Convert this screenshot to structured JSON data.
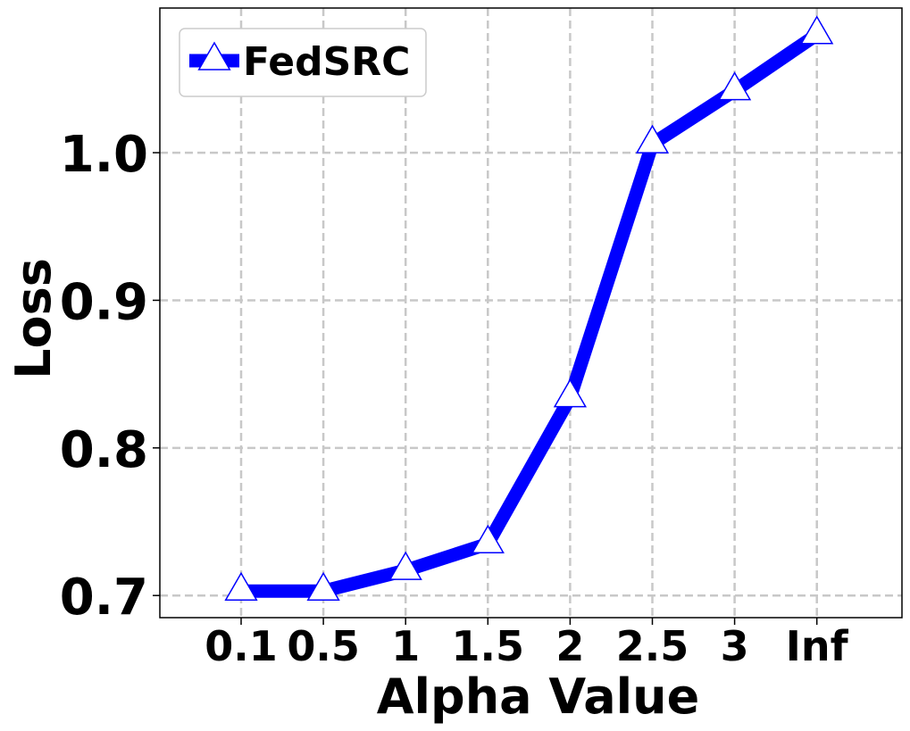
{
  "chart_data": {
    "type": "line",
    "title": "",
    "xlabel": "Alpha Value",
    "ylabel": "Loss",
    "categories": [
      "0.1",
      "0.5",
      "1",
      "1.5",
      "2",
      "2.5",
      "3",
      "Inf"
    ],
    "series": [
      {
        "name": "FedSRC",
        "values": [
          0.703,
          0.703,
          0.717,
          0.735,
          0.834,
          1.006,
          1.042,
          1.08
        ],
        "color": "#0000ff",
        "marker": "triangle-up-open"
      }
    ],
    "yticks": [
      "0.7",
      "0.8",
      "0.9",
      "1.0"
    ],
    "ylim": [
      0.685,
      1.098
    ],
    "grid": true,
    "legend_position": "top-left"
  }
}
